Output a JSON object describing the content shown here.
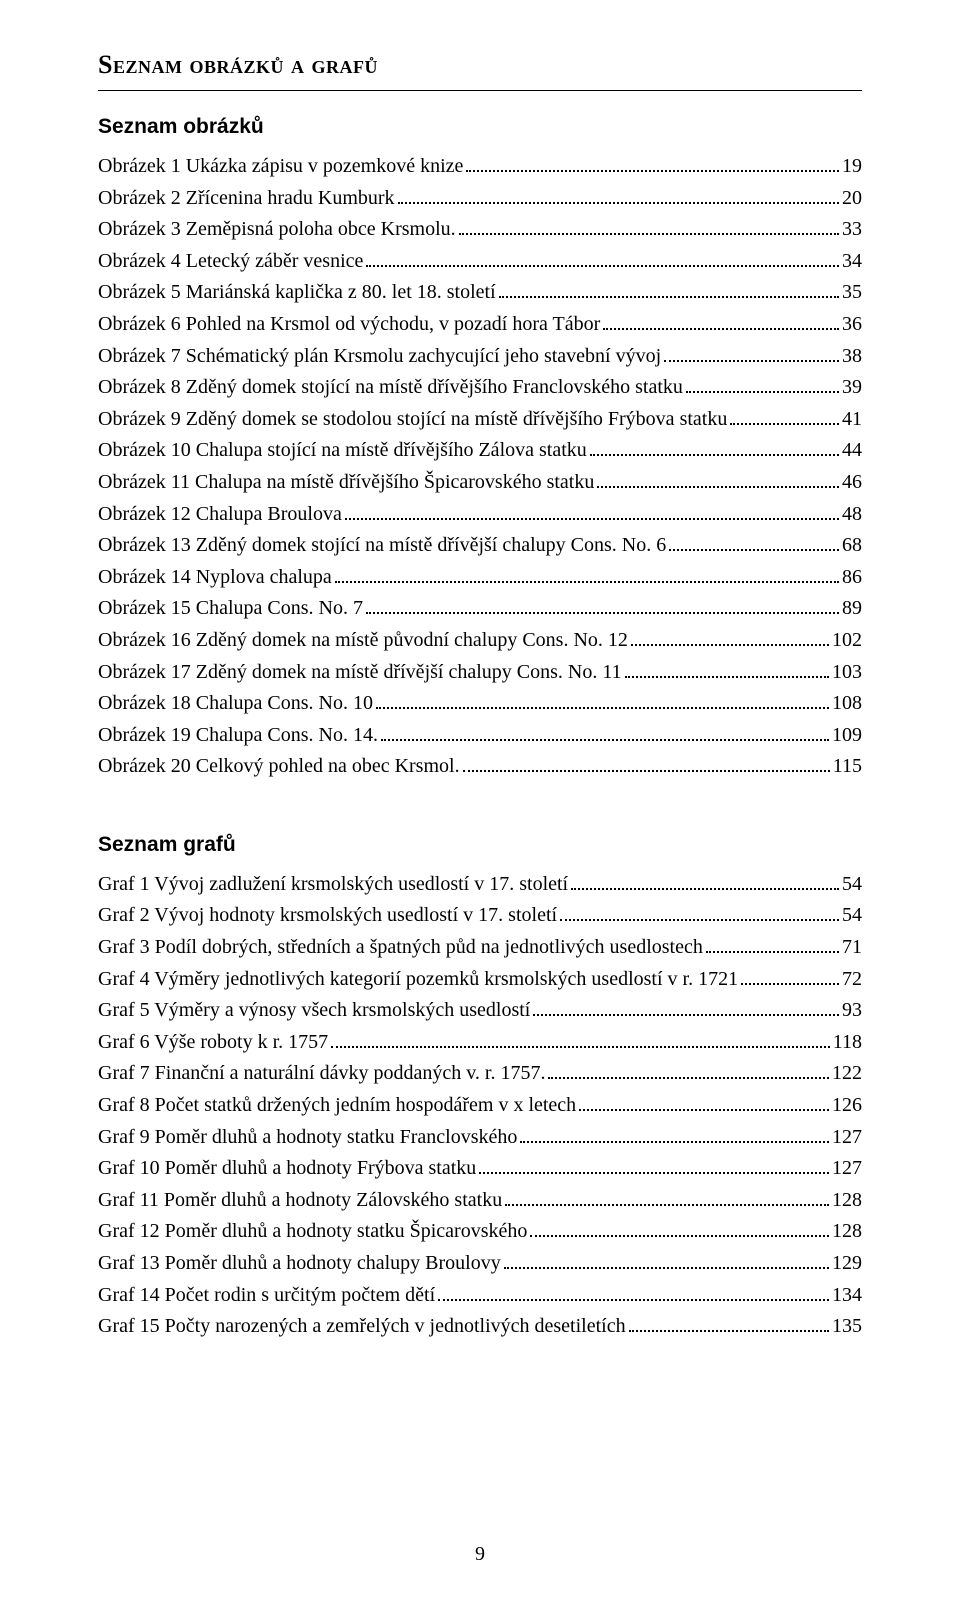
{
  "title": "Seznam obrázků a grafů",
  "divider_color": "#000000",
  "page_number": "9",
  "sections": [
    {
      "heading": "Seznam obrázků",
      "entries": [
        {
          "label": "Obrázek 1 Ukázka zápisu v pozemkové knize",
          "page": "19"
        },
        {
          "label": "Obrázek 2 Zřícenina hradu Kumburk",
          "page": "20"
        },
        {
          "label": "Obrázek 3 Zeměpisná poloha obce Krsmolu.",
          "page": "33"
        },
        {
          "label": "Obrázek 4 Letecký záběr vesnice",
          "page": "34"
        },
        {
          "label": "Obrázek 5 Mariánská kaplička z 80. let 18. století",
          "page": "35"
        },
        {
          "label": "Obrázek 6 Pohled na Krsmol od východu, v pozadí hora Tábor",
          "page": "36"
        },
        {
          "label": "Obrázek 7 Schématický plán Krsmolu zachycující jeho stavební vývoj",
          "page": "38"
        },
        {
          "label": "Obrázek 8 Zděný domek stojící na místě dřívějšího Franclovského statku",
          "page": "39"
        },
        {
          "label": "Obrázek 9 Zděný domek se stodolou stojící na místě dřívějšího Frýbova statku",
          "page": "41"
        },
        {
          "label": "Obrázek 10 Chalupa stojící na místě dřívějšího Zálova statku",
          "page": "44"
        },
        {
          "label": "Obrázek 11 Chalupa na místě dřívějšího Špicarovského statku",
          "page": "46"
        },
        {
          "label": "Obrázek 12 Chalupa Broulova",
          "page": "48"
        },
        {
          "label": "Obrázek 13 Zděný domek stojící na místě dřívější chalupy Cons. No. 6",
          "page": "68"
        },
        {
          "label": "Obrázek 14 Nyplova chalupa",
          "page": "86"
        },
        {
          "label": "Obrázek 15 Chalupa Cons. No. 7",
          "page": "89"
        },
        {
          "label": "Obrázek 16 Zděný domek na místě původní chalupy Cons. No. 12",
          "page": "102"
        },
        {
          "label": "Obrázek 17 Zděný domek na místě dřívější chalupy Cons. No. 11",
          "page": "103"
        },
        {
          "label": "Obrázek 18 Chalupa Cons. No. 10",
          "page": "108"
        },
        {
          "label": "Obrázek 19 Chalupa Cons. No. 14.",
          "page": "109"
        },
        {
          "label": "Obrázek 20 Celkový pohled na obec Krsmol.",
          "page": "115"
        }
      ]
    },
    {
      "heading": "Seznam grafů",
      "entries": [
        {
          "label": "Graf 1 Vývoj zadlužení krsmolských usedlostí v 17. století",
          "page": "54"
        },
        {
          "label": "Graf 2 Vývoj hodnoty krsmolských usedlostí v 17. století",
          "page": "54"
        },
        {
          "label": "Graf 3 Podíl dobrých, středních a špatných půd na jednotlivých usedlostech",
          "page": "71"
        },
        {
          "label": "Graf 4 Výměry jednotlivých kategorií pozemků krsmolských usedlostí v r. 1721",
          "page": "72"
        },
        {
          "label": "Graf 5 Výměry a výnosy všech krsmolských usedlostí",
          "page": "93"
        },
        {
          "label": "Graf 6 Výše roboty k r. 1757",
          "page": "118"
        },
        {
          "label": "Graf 7 Finanční a naturální dávky poddaných v. r. 1757.",
          "page": "122"
        },
        {
          "label": "Graf 8 Počet statků držených jedním hospodářem v x letech",
          "page": "126"
        },
        {
          "label": "Graf 9 Poměr dluhů a hodnoty statku Franclovského",
          "page": "127"
        },
        {
          "label": "Graf 10 Poměr dluhů a hodnoty Frýbova statku",
          "page": "127"
        },
        {
          "label": "Graf 11 Poměr dluhů a hodnoty Zálovského statku",
          "page": "128"
        },
        {
          "label": "Graf 12 Poměr dluhů a hodnoty statku Špicarovského",
          "page": "128"
        },
        {
          "label": "Graf 13 Poměr dluhů a hodnoty chalupy Broulovy",
          "page": "129"
        },
        {
          "label": "Graf 14 Počet rodin s určitým počtem dětí",
          "page": "134"
        },
        {
          "label": "Graf 15 Počty narozených a zemřelých v jednotlivých desetiletích",
          "page": "135"
        }
      ]
    }
  ]
}
